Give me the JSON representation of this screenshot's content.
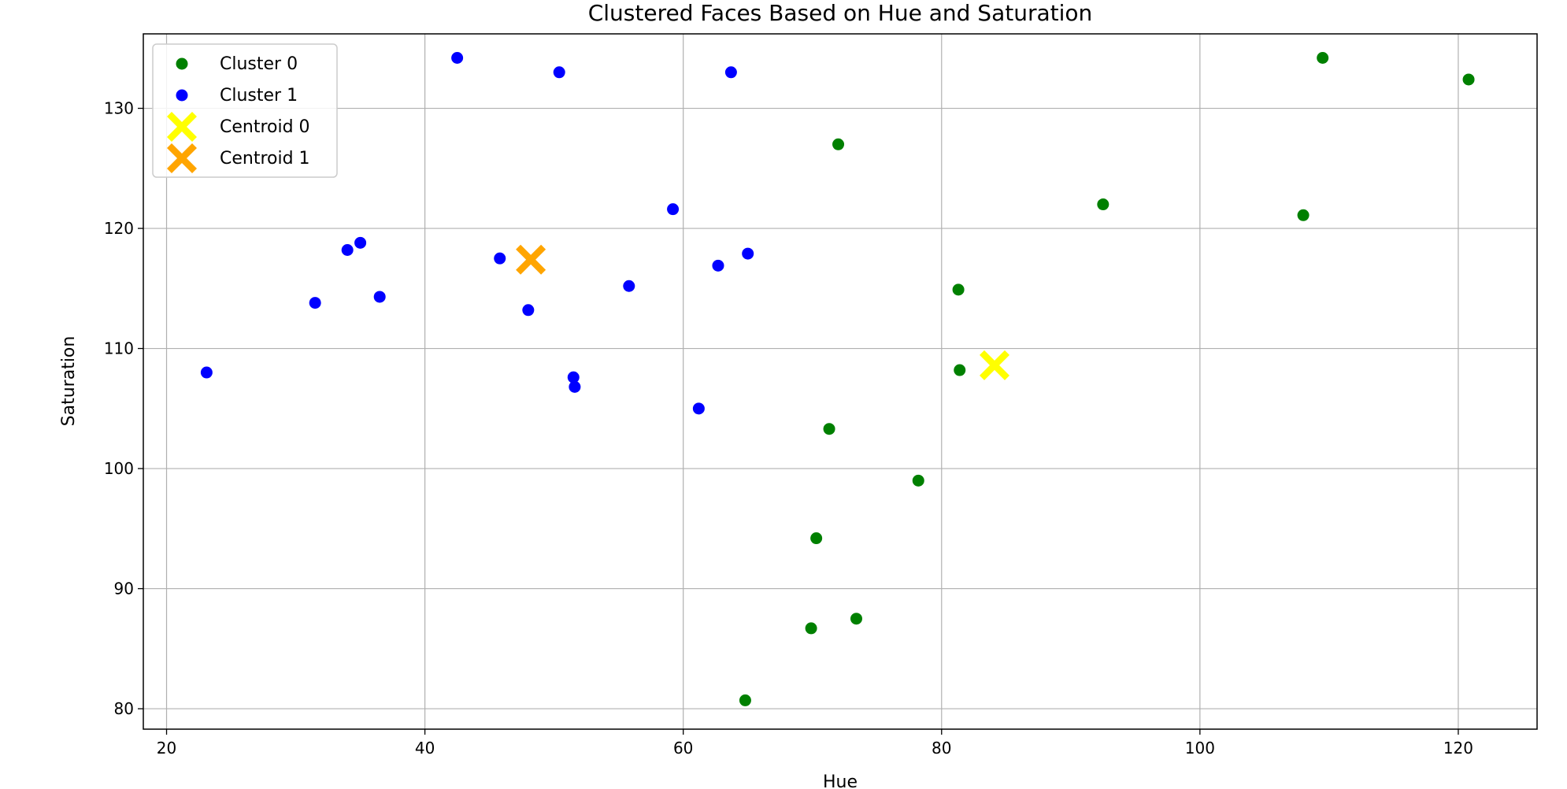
{
  "chart_data": {
    "type": "scatter",
    "title": "Clustered Faces Based on Hue and Saturation",
    "xlabel": "Hue",
    "ylabel": "Saturation",
    "xlim": [
      18.2,
      126.1
    ],
    "ylim": [
      78.3,
      136.2
    ],
    "xticks": [
      20,
      40,
      60,
      80,
      100,
      120
    ],
    "yticks": [
      80,
      90,
      100,
      110,
      120,
      130
    ],
    "grid": true,
    "legend_position": "top-left",
    "series": [
      {
        "name": "Cluster 0",
        "color": "#008000",
        "marker": "circle",
        "points": [
          [
            72.0,
            127.0
          ],
          [
            81.3,
            114.9
          ],
          [
            81.4,
            108.2
          ],
          [
            71.3,
            103.3
          ],
          [
            78.2,
            99.0
          ],
          [
            70.3,
            94.2
          ],
          [
            69.9,
            86.7
          ],
          [
            73.4,
            87.5
          ],
          [
            64.8,
            80.7
          ],
          [
            92.5,
            122.0
          ],
          [
            108.0,
            121.1
          ],
          [
            109.5,
            134.2
          ],
          [
            120.8,
            132.4
          ]
        ]
      },
      {
        "name": "Cluster 1",
        "color": "#0000ff",
        "marker": "circle",
        "points": [
          [
            23.1,
            108.0
          ],
          [
            31.5,
            113.8
          ],
          [
            34.0,
            118.2
          ],
          [
            35.0,
            118.8
          ],
          [
            36.5,
            114.3
          ],
          [
            42.5,
            134.2
          ],
          [
            45.8,
            117.5
          ],
          [
            48.0,
            113.2
          ],
          [
            50.4,
            133.0
          ],
          [
            51.5,
            107.6
          ],
          [
            51.6,
            106.8
          ],
          [
            55.8,
            115.2
          ],
          [
            59.2,
            121.6
          ],
          [
            61.2,
            105.0
          ],
          [
            62.7,
            116.9
          ],
          [
            63.7,
            133.0
          ],
          [
            65.0,
            117.9
          ]
        ]
      },
      {
        "name": "Centroid 0",
        "color": "#ffff00",
        "marker": "x",
        "points": [
          [
            84.1,
            108.6
          ]
        ]
      },
      {
        "name": "Centroid 1",
        "color": "#ffa500",
        "marker": "x",
        "points": [
          [
            48.2,
            117.4
          ]
        ]
      }
    ]
  }
}
